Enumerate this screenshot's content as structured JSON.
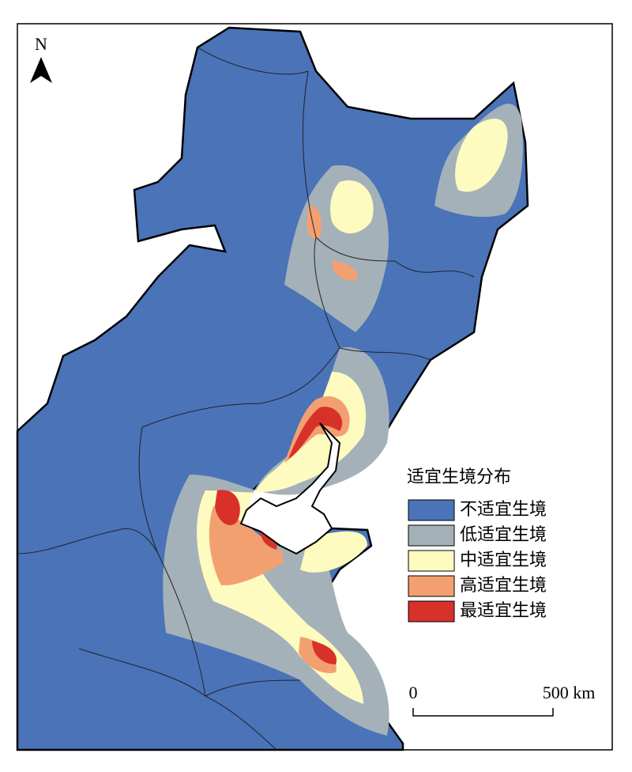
{
  "north": "N",
  "legend": {
    "title": "适宜生境分布",
    "items": [
      {
        "label": "不适宜生境",
        "color": "#4a73b8"
      },
      {
        "label": "低适宜生境",
        "color": "#a5b1b8"
      },
      {
        "label": "中适宜生境",
        "color": "#fdfbc0"
      },
      {
        "label": "高适宜生境",
        "color": "#f3a071"
      },
      {
        "label": "最适宜生境",
        "color": "#d8312a"
      }
    ]
  },
  "scale": {
    "start": "0",
    "end": "500 km"
  }
}
